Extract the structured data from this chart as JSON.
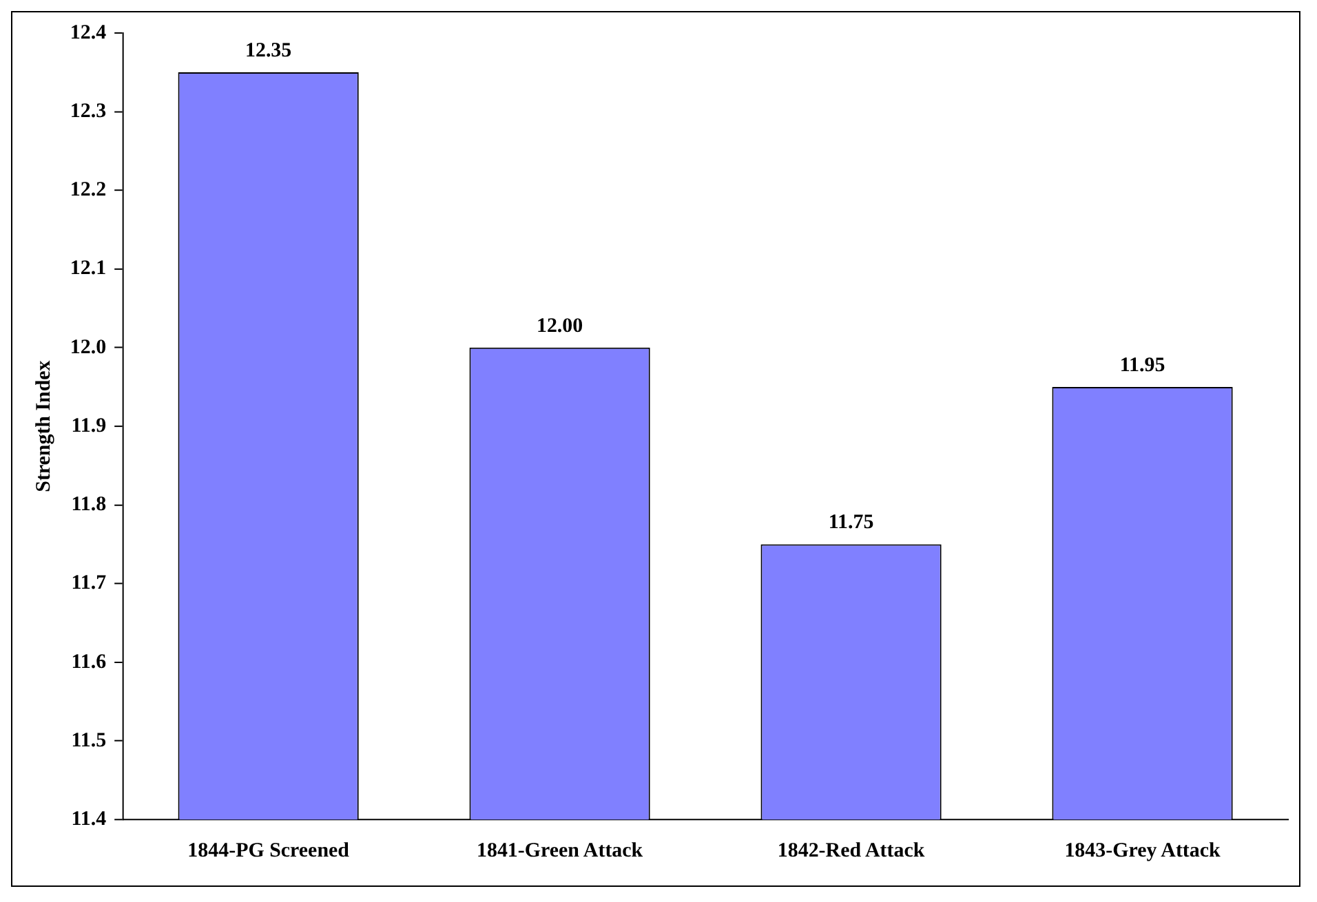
{
  "chart_data": {
    "type": "bar",
    "ylabel": "Strength Index",
    "categories": [
      "1844-PG Screened",
      "1841-Green Attack",
      "1842-Red Attack",
      "1843-Grey Attack"
    ],
    "values": [
      12.35,
      12.0,
      11.75,
      11.95
    ],
    "value_labels": [
      "12.35",
      "12.00",
      "11.75",
      "11.95"
    ],
    "color": "#8080ff",
    "ylim": [
      11.4,
      12.4
    ],
    "yticks": [
      11.4,
      11.5,
      11.6,
      11.7,
      11.8,
      11.9,
      {
        "value": 12,
        "label": "12.0"
      },
      12.1,
      12.2,
      12.3,
      12.4
    ],
    "grid": false,
    "legend": false
  }
}
